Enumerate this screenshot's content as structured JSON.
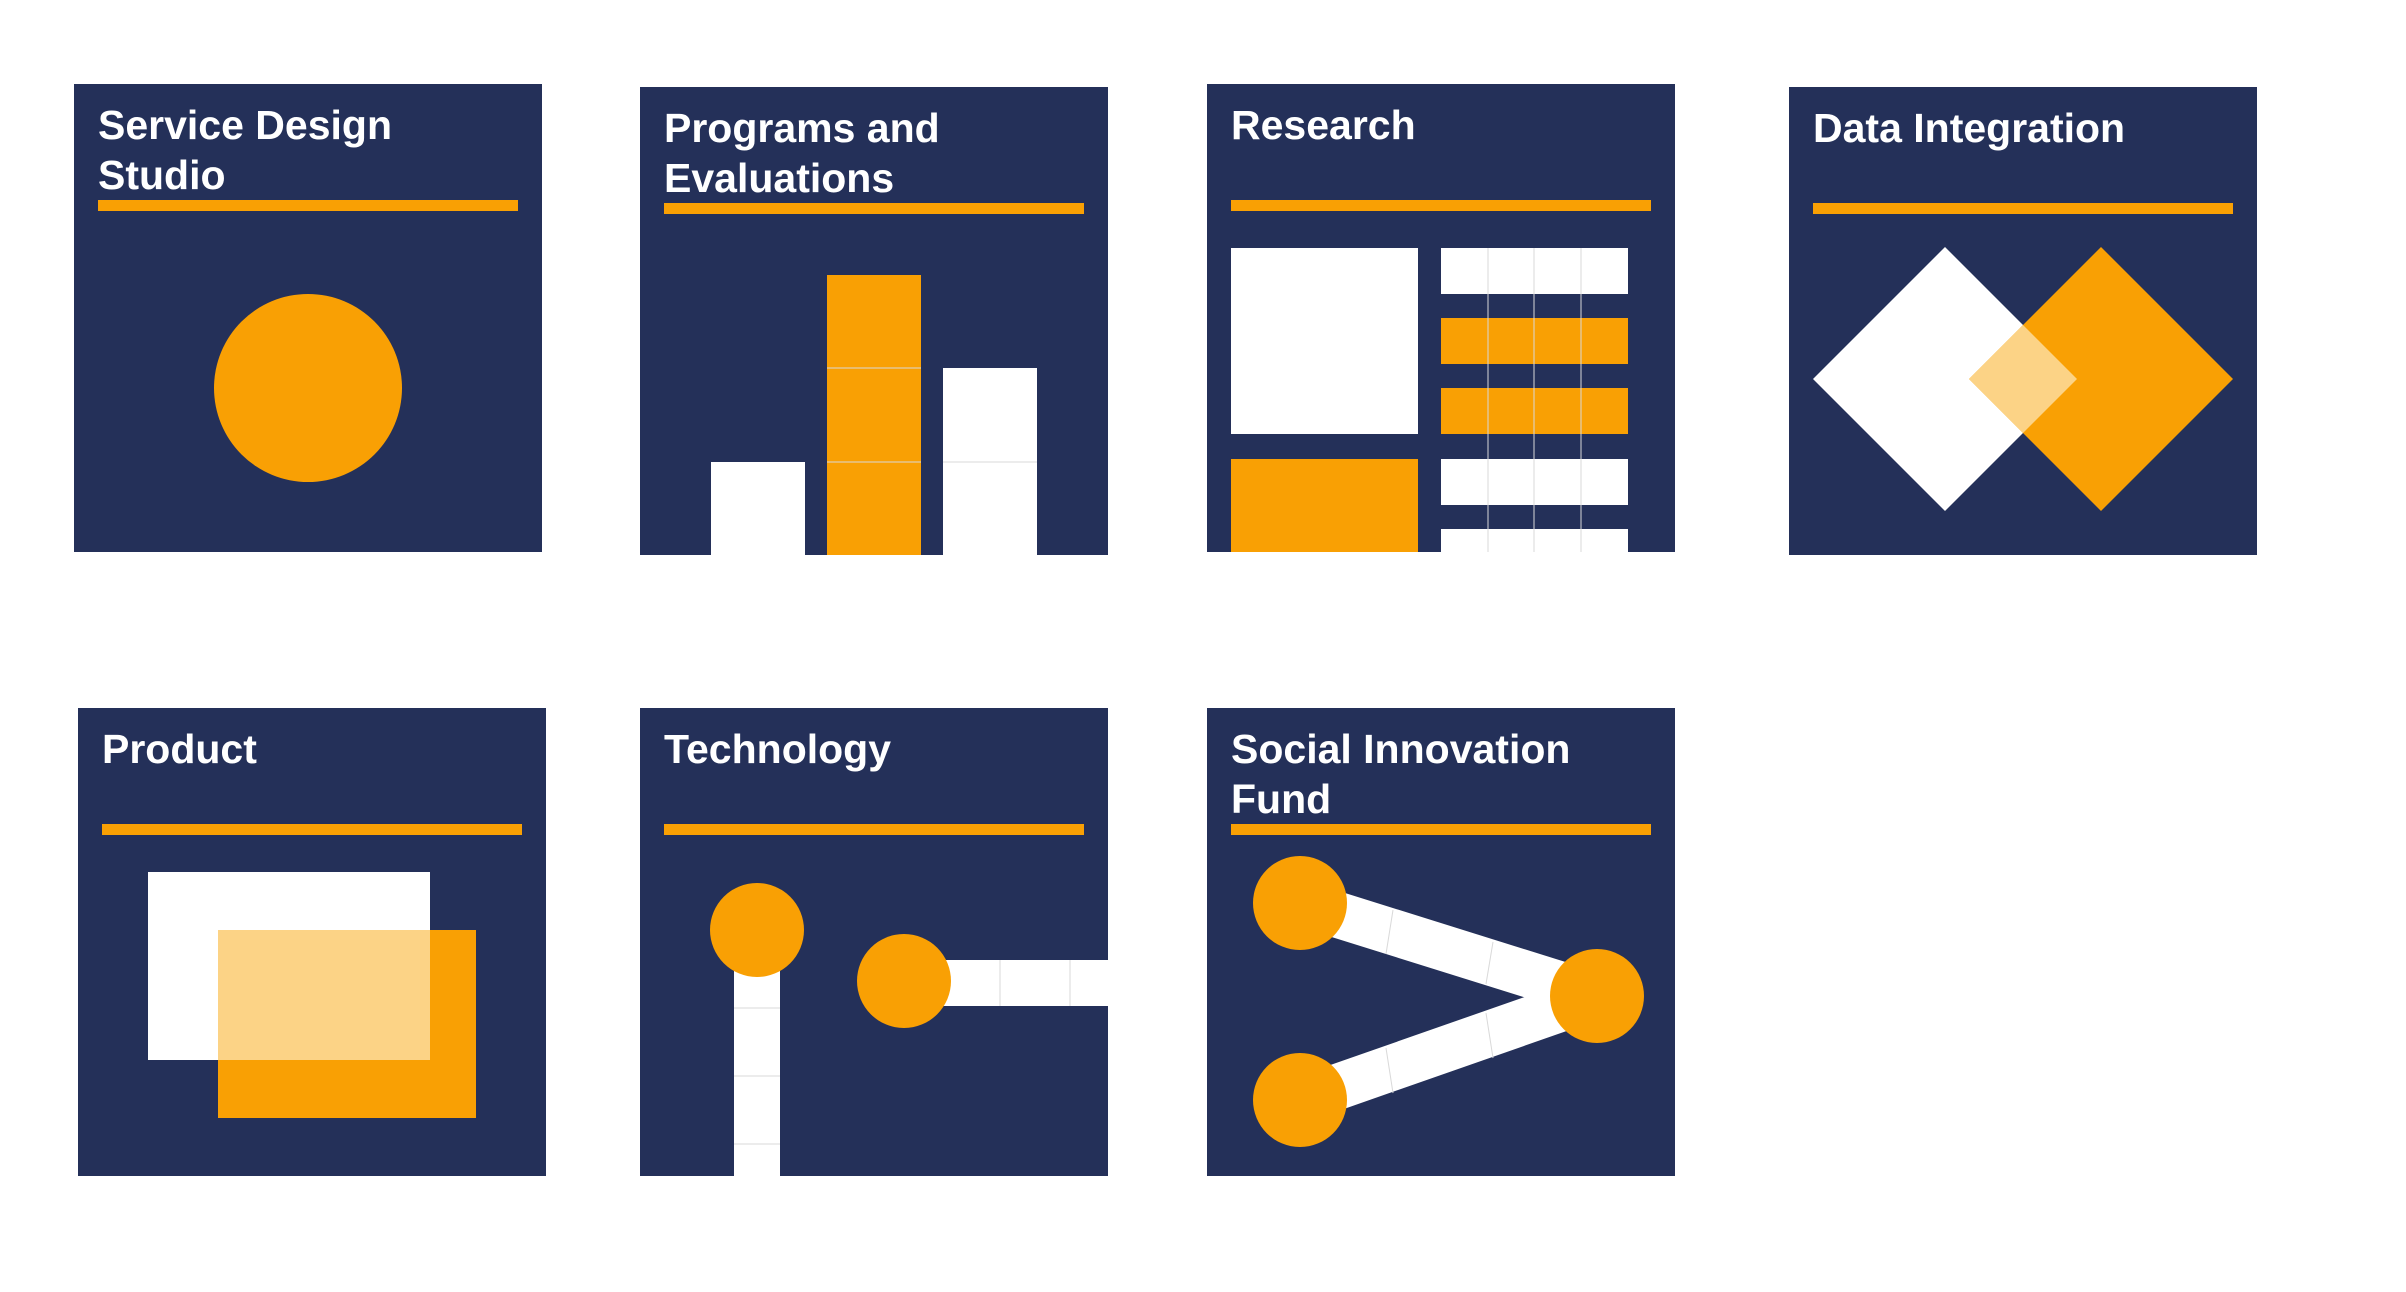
{
  "colors": {
    "navy": "#243059",
    "orange": "#f9a004",
    "white": "#ffffff",
    "orange_light": "#fcd386",
    "background": "#ffffff"
  },
  "tiles": [
    {
      "title": "Service Design Studio",
      "icon": "circle-icon"
    },
    {
      "title": "Programs and Evaluations",
      "icon": "bar-chart-icon"
    },
    {
      "title": "Research",
      "icon": "grid-layout-icon"
    },
    {
      "title": "Data Integration",
      "icon": "overlapping-diamonds-icon"
    },
    {
      "title": "Product",
      "icon": "overlapping-rectangles-icon"
    },
    {
      "title": "Technology",
      "icon": "connector-nodes-icon"
    },
    {
      "title": "Social Innovation Fund",
      "icon": "network-nodes-icon"
    }
  ]
}
